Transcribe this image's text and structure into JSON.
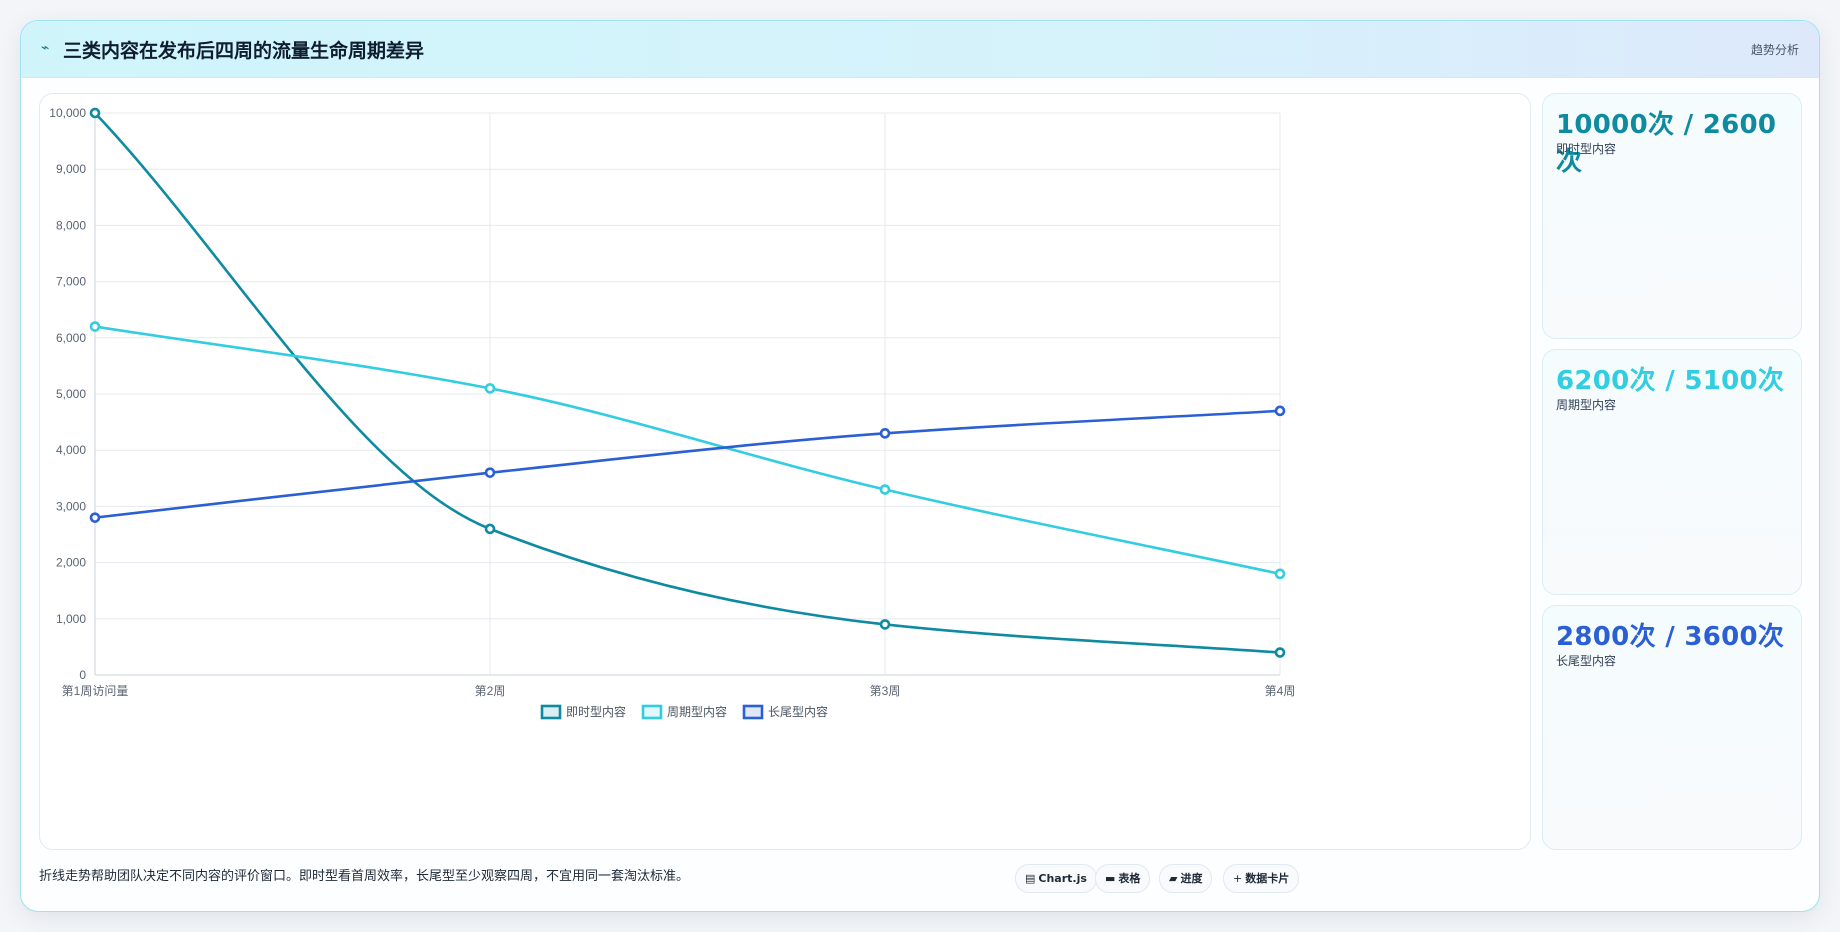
{
  "header": {
    "icon": "trend-icon",
    "icon_glyph": "⌁",
    "title": "三类内容在发布后四周的流量生命周期差异",
    "tag": "趋势分析"
  },
  "chart_data": {
    "type": "line",
    "title": "",
    "xlabel": "",
    "ylabel": "",
    "categories": [
      "第1周访问量",
      "第2周",
      "第3周",
      "第4周"
    ],
    "ylim": [
      0,
      10000
    ],
    "yticks": [
      0,
      1000,
      2000,
      3000,
      4000,
      5000,
      6000,
      7000,
      8000,
      9000,
      10000
    ],
    "ytick_labels": [
      "0",
      "1,000",
      "2,000",
      "3,000",
      "4,000",
      "5,000",
      "6,000",
      "7,000",
      "8,000",
      "9,000",
      "10,000"
    ],
    "grid": true,
    "legend_position": "bottom",
    "series": [
      {
        "name": "即时型内容",
        "color": "#0e8aa1",
        "values": [
          10000,
          2600,
          900,
          400
        ]
      },
      {
        "name": "周期型内容",
        "color": "#32cde0",
        "values": [
          6200,
          5100,
          3300,
          1800
        ]
      },
      {
        "name": "长尾型内容",
        "color": "#2b5fd4",
        "values": [
          2800,
          3600,
          4300,
          4700
        ]
      }
    ]
  },
  "stats": [
    {
      "value": "10000次 / 2600次",
      "label": "即时型内容",
      "color": "#0e8aa1"
    },
    {
      "value": "6200次 / 5100次",
      "label": "周期型内容",
      "color": "#32cde0"
    },
    {
      "value": "2800次 / 3600次",
      "label": "长尾型内容",
      "color": "#2b5fd4"
    }
  ],
  "footer": {
    "note": "折线走势帮助团队决定不同内容的评价窗口。即时型看首周效率，长尾型至少观察四周，不宜用同一套淘汰标准。",
    "chips": [
      {
        "icon": "chart-icon",
        "glyph": "▤",
        "label": "Chart.js"
      },
      {
        "icon": "table-icon",
        "glyph": "▬",
        "label": "表格"
      },
      {
        "icon": "progress-icon",
        "glyph": "▰",
        "label": "进度"
      },
      {
        "icon": "data-card-icon",
        "glyph": "+",
        "label": "数据卡片"
      }
    ]
  }
}
